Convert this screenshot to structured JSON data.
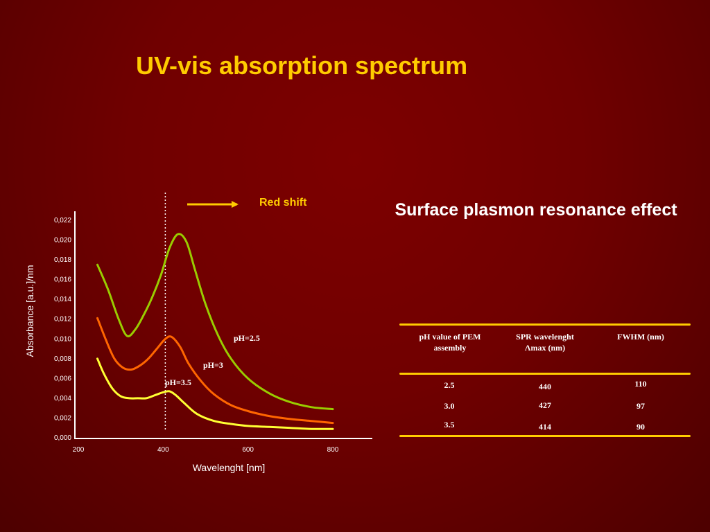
{
  "slide": {
    "title": "UV-vis absorption spectrum",
    "annotation": "Red shift",
    "spr_heading": "Surface plasmon resonance effect"
  },
  "colors": {
    "background": "#700000",
    "title": "#ffcc00",
    "arrow": "#ffcc00",
    "ph_2_5": "#99cc00",
    "ph_3": "#ff6600",
    "ph_3_5": "#ffff33",
    "table_lines": "#ffcc00"
  },
  "table": {
    "headers": [
      "pH value of PEM assembly",
      "SPR wavelenght Λmax (nm)",
      "FWHM (nm)"
    ],
    "rows": [
      [
        "2.5",
        "440",
        "110"
      ],
      [
        "3.0",
        "427",
        "97"
      ],
      [
        "3.5",
        "414",
        "90"
      ]
    ]
  },
  "chart_data": {
    "type": "line",
    "title": "",
    "xlabel": "Wavelenght [nm]",
    "ylabel": "Absorbance [a.u.]/nm",
    "xlim": [
      200,
      900
    ],
    "ylim": [
      0,
      0.022
    ],
    "x_ticks": [
      200,
      400,
      600,
      800
    ],
    "x_tick_labels": [
      "200",
      "400",
      "600",
      "800"
    ],
    "y_ticks": [
      0,
      0.002,
      0.004,
      0.006,
      0.008,
      0.01,
      0.012,
      0.014,
      0.016,
      0.018,
      0.02,
      0.022
    ],
    "y_tick_labels": [
      "0,000",
      "0,002",
      "0,004",
      "0,006",
      "0,008",
      "0,010",
      "0,012",
      "0,014",
      "0,016",
      "0,018",
      "0,020",
      "0,022"
    ],
    "reference_line_x": 405,
    "grid": false,
    "series": [
      {
        "name": "pH=2.5",
        "color": "#99cc00",
        "x": [
          245,
          270,
          295,
          315,
          335,
          355,
          375,
          395,
          415,
          435,
          455,
          475,
          500,
          530,
          560,
          600,
          650,
          700,
          750,
          800
        ],
        "y": [
          0.0175,
          0.015,
          0.012,
          0.0103,
          0.011,
          0.0125,
          0.0143,
          0.0165,
          0.0192,
          0.0206,
          0.0198,
          0.017,
          0.0135,
          0.0103,
          0.008,
          0.006,
          0.0045,
          0.0036,
          0.0031,
          0.0029
        ]
      },
      {
        "name": "pH=3",
        "color": "#ff6600",
        "x": [
          245,
          265,
          285,
          305,
          325,
          345,
          365,
          385,
          405,
          420,
          440,
          460,
          490,
          520,
          560,
          600,
          650,
          700,
          750,
          800
        ],
        "y": [
          0.0121,
          0.0099,
          0.008,
          0.0071,
          0.0069,
          0.0073,
          0.008,
          0.009,
          0.01,
          0.0102,
          0.0092,
          0.0075,
          0.0057,
          0.0044,
          0.0033,
          0.0027,
          0.0022,
          0.0019,
          0.0017,
          0.0015
        ]
      },
      {
        "name": "pH=3.5",
        "color": "#ffff33",
        "x": [
          245,
          260,
          280,
          300,
          320,
          340,
          360,
          380,
          400,
          415,
          430,
          450,
          480,
          520,
          560,
          600,
          650,
          700,
          750,
          800
        ],
        "y": [
          0.008,
          0.0065,
          0.005,
          0.0042,
          0.004,
          0.004,
          0.004,
          0.0043,
          0.0046,
          0.0047,
          0.0043,
          0.0035,
          0.0024,
          0.0017,
          0.0014,
          0.0012,
          0.0011,
          0.001,
          0.0009,
          0.0009
        ]
      }
    ]
  }
}
